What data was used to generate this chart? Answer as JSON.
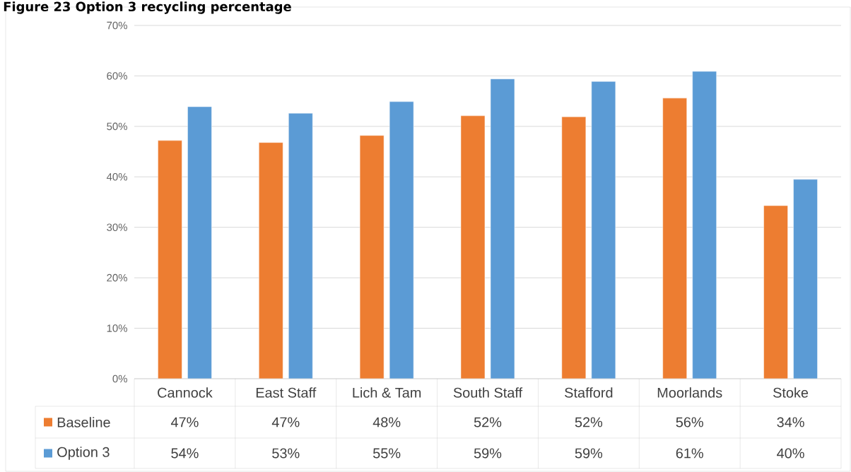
{
  "chart_data": {
    "type": "bar",
    "title": "Figure 23 Option 3 recycling percentage",
    "categories": [
      "Cannock",
      "East Staff",
      "Lich & Tam",
      "South Staff",
      "Stafford",
      "Moorlands",
      "Stoke"
    ],
    "series": [
      {
        "name": "Baseline",
        "color": "#ed7d31",
        "values": [
          47.2,
          46.8,
          48.2,
          52.1,
          51.9,
          55.6,
          34.3
        ],
        "value_labels": [
          "47%",
          "47%",
          "48%",
          "52%",
          "52%",
          "56%",
          "34%"
        ]
      },
      {
        "name": "Option 3",
        "color": "#5b9bd5",
        "values": [
          53.9,
          52.6,
          54.9,
          59.4,
          58.9,
          60.9,
          39.5
        ],
        "value_labels": [
          "54%",
          "53%",
          "55%",
          "59%",
          "59%",
          "61%",
          "40%"
        ]
      }
    ],
    "ylim": [
      0,
      70
    ],
    "yticks": [
      {
        "value": 0,
        "label": "0%"
      },
      {
        "value": 10,
        "label": "10%"
      },
      {
        "value": 20,
        "label": "20%"
      },
      {
        "value": 30,
        "label": "30%"
      },
      {
        "value": 40,
        "label": "40%"
      },
      {
        "value": 50,
        "label": "50%"
      },
      {
        "value": 60,
        "label": "60%"
      },
      {
        "value": 70,
        "label": "70%"
      }
    ],
    "grid": "y",
    "legend": "bottom"
  }
}
